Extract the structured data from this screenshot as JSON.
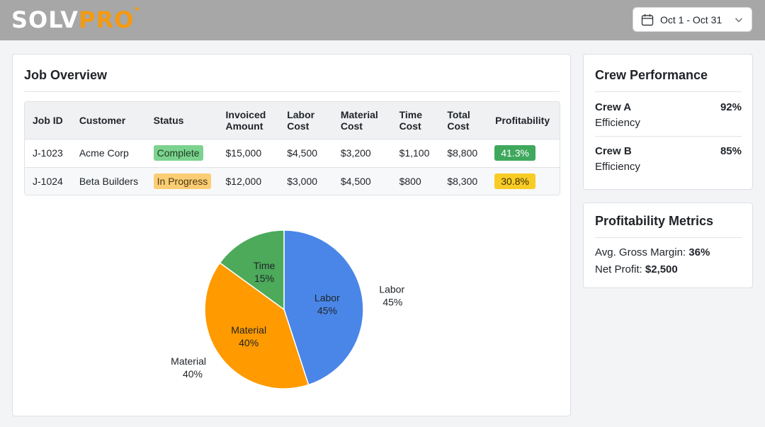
{
  "brand": {
    "logo_part1": "SOLV",
    "logo_part2": "PRO"
  },
  "date_range": {
    "label": "Oct 1 - Oct 31",
    "icon": "calendar-icon"
  },
  "job_overview": {
    "title": "Job Overview",
    "columns": [
      [
        "Job ID"
      ],
      [
        "Customer"
      ],
      [
        "Status"
      ],
      [
        "Invoiced",
        "Amount"
      ],
      [
        "Labor",
        "Cost"
      ],
      [
        "Material",
        "Cost"
      ],
      [
        "Time",
        "Cost"
      ],
      [
        "Total",
        "Cost"
      ],
      [
        "Profitability"
      ]
    ],
    "rows": [
      {
        "job_id": "J-1023",
        "customer": "Acme Corp",
        "status": "Complete",
        "status_type": "complete",
        "invoiced": "$15,000",
        "labor": "$4,500",
        "material": "$3,200",
        "time": "$1,100",
        "total": "$8,800",
        "profitability": "41.3%",
        "profit_color": "green"
      },
      {
        "job_id": "J-1024",
        "customer": "Beta Builders",
        "status": "In Progress",
        "status_type": "progress",
        "invoiced": "$12,000",
        "labor": "$3,000",
        "material": "$4,500",
        "time": "$800",
        "total": "$8,300",
        "profitability": "30.8%",
        "profit_color": "yellow"
      }
    ]
  },
  "chart_data": {
    "type": "pie",
    "slices": [
      {
        "label": "Labor",
        "value": 45,
        "color": "#4a86e8"
      },
      {
        "label": "Material",
        "value": 40,
        "color": "#ff9a00"
      },
      {
        "label": "Time",
        "value": 15,
        "color": "#4caa5a"
      }
    ],
    "outer_labels": [
      "Labor",
      "Material"
    ]
  },
  "crew_performance": {
    "title": "Crew Performance",
    "crews": [
      {
        "name": "Crew A",
        "metric": "Efficiency",
        "value": "92%"
      },
      {
        "name": "Crew B",
        "metric": "Efficiency",
        "value": "85%"
      }
    ]
  },
  "profitability_metrics": {
    "title": "Profitability Metrics",
    "avg_gross_margin_label": "Avg. Gross Margin:",
    "avg_gross_margin_value": "36%",
    "net_profit_label": "Net Profit:",
    "net_profit_value": "$2,500"
  }
}
